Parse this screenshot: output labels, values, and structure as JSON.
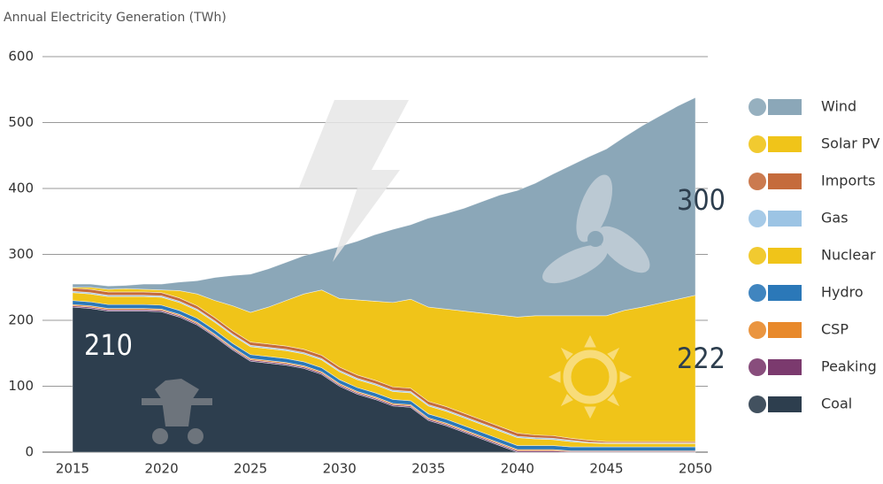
{
  "chart_data": {
    "type": "stacked_area",
    "title": "Annual Electricity Generation (TWh)",
    "x": [
      2015,
      2016,
      2017,
      2018,
      2019,
      2020,
      2021,
      2022,
      2023,
      2024,
      2025,
      2026,
      2027,
      2028,
      2029,
      2030,
      2031,
      2032,
      2033,
      2034,
      2035,
      2036,
      2037,
      2038,
      2039,
      2040,
      2041,
      2042,
      2043,
      2044,
      2045,
      2046,
      2047,
      2048,
      2049,
      2050
    ],
    "xlim": [
      2015,
      2050
    ],
    "xticks": [
      2015,
      2020,
      2025,
      2030,
      2035,
      2040,
      2045,
      2050
    ],
    "ylim": [
      0,
      600
    ],
    "yticks": [
      0,
      100,
      200,
      300,
      400,
      500,
      600
    ],
    "grid": true,
    "series": [
      {
        "name": "Coal",
        "color": "#2d3e4e",
        "values": [
          220,
          218,
          214,
          214,
          214,
          213,
          205,
          193,
          175,
          155,
          138,
          135,
          132,
          127,
          118,
          100,
          88,
          80,
          70,
          68,
          48,
          40,
          30,
          20,
          10,
          0,
          0,
          0,
          0,
          0,
          0,
          0,
          0,
          0,
          0,
          0
        ]
      },
      {
        "name": "Peaking",
        "color": "#7b3a6e",
        "values": [
          2,
          2,
          2,
          2,
          2,
          2,
          2,
          2,
          2,
          2,
          2,
          2,
          2,
          2,
          2,
          2,
          2,
          2,
          2,
          2,
          2,
          2,
          2,
          2,
          2,
          2,
          2,
          2,
          1,
          1,
          1,
          1,
          1,
          1,
          1,
          1
        ]
      },
      {
        "name": "CSP",
        "color": "#e8892b",
        "values": [
          2,
          2,
          2,
          2,
          2,
          2,
          2,
          2,
          2,
          2,
          2,
          2,
          2,
          2,
          2,
          2,
          2,
          2,
          2,
          2,
          2,
          2,
          2,
          2,
          2,
          2,
          2,
          2,
          1,
          1,
          1,
          1,
          1,
          1,
          1,
          1
        ]
      },
      {
        "name": "Hydro",
        "color": "#2b78b8",
        "values": [
          6,
          6,
          6,
          6,
          6,
          6,
          6,
          6,
          6,
          6,
          6,
          6,
          6,
          6,
          6,
          6,
          6,
          6,
          6,
          6,
          6,
          6,
          6,
          6,
          6,
          6,
          6,
          6,
          6,
          6,
          6,
          6,
          6,
          6,
          6,
          6
        ]
      },
      {
        "name": "Nuclear",
        "color": "#f0c419",
        "values": [
          12,
          12,
          12,
          12,
          12,
          12,
          12,
          12,
          12,
          12,
          12,
          12,
          12,
          12,
          12,
          12,
          12,
          12,
          12,
          12,
          12,
          12,
          12,
          12,
          12,
          12,
          10,
          9,
          8,
          6,
          5,
          5,
          5,
          5,
          5,
          5
        ]
      },
      {
        "name": "Gas",
        "color": "#9cc4e4",
        "values": [
          2,
          2,
          2,
          2,
          2,
          2,
          2,
          2,
          2,
          2,
          2,
          2,
          2,
          2,
          2,
          2,
          2,
          2,
          2,
          2,
          2,
          2,
          2,
          2,
          2,
          2,
          2,
          2,
          2,
          1,
          1,
          1,
          1,
          1,
          1,
          1
        ]
      },
      {
        "name": "Imports",
        "color": "#c56b3c",
        "values": [
          5,
          5,
          5,
          5,
          5,
          5,
          5,
          5,
          5,
          5,
          5,
          5,
          5,
          5,
          5,
          5,
          5,
          5,
          5,
          5,
          5,
          5,
          5,
          5,
          5,
          5,
          4,
          4,
          3,
          3,
          2,
          2,
          2,
          2,
          2,
          2
        ]
      },
      {
        "name": "Solar PV",
        "color": "#f0c419",
        "values": [
          1,
          3,
          4,
          5,
          4,
          4,
          11,
          18,
          26,
          38,
          45,
          56,
          69,
          84,
          99,
          104,
          114,
          120,
          128,
          135,
          143,
          148,
          155,
          162,
          169,
          176,
          181,
          182,
          186,
          189,
          191,
          199,
          204,
          210,
          216,
          222
        ]
      },
      {
        "name": "Wind",
        "color": "#8ba7b8",
        "values": [
          5,
          5,
          5,
          5,
          8,
          9,
          13,
          20,
          35,
          46,
          58,
          58,
          58,
          58,
          59,
          79,
          89,
          101,
          111,
          113,
          135,
          145,
          156,
          169,
          182,
          192,
          201,
          215,
          228,
          241,
          253,
          263,
          275,
          284,
          293,
          300
        ]
      }
    ],
    "annotations": [
      "210",
      "222",
      "300"
    ]
  }
}
